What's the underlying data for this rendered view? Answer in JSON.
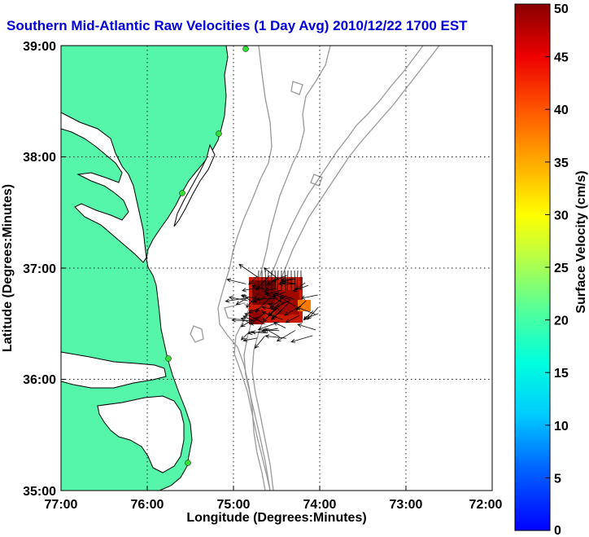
{
  "title": "Southern Mid-Atlantic Raw Velocities (1 Day Avg) 2010/12/22 1700 EST",
  "xlabel": "Longitude (Degrees:Minutes)",
  "ylabel": "Latitude (Degrees:Minutes)",
  "x_ticks": [
    "77:00",
    "76:00",
    "75:00",
    "74:00",
    "73:00",
    "72:00"
  ],
  "y_ticks": [
    "39:00",
    "38:00",
    "37:00",
    "36:00",
    "35:00"
  ],
  "colorbar": {
    "label": "Surface Velocity (cm/s)",
    "ticks": [
      "0",
      "5",
      "10",
      "15",
      "20",
      "25",
      "30",
      "35",
      "40",
      "45",
      "50"
    ],
    "min": 0,
    "max": 50
  },
  "colors": {
    "land": "#55f5aa",
    "coast": "#000000",
    "bathymetry": "#999999",
    "stations": "#33dd33",
    "title": "#0000dd"
  }
}
